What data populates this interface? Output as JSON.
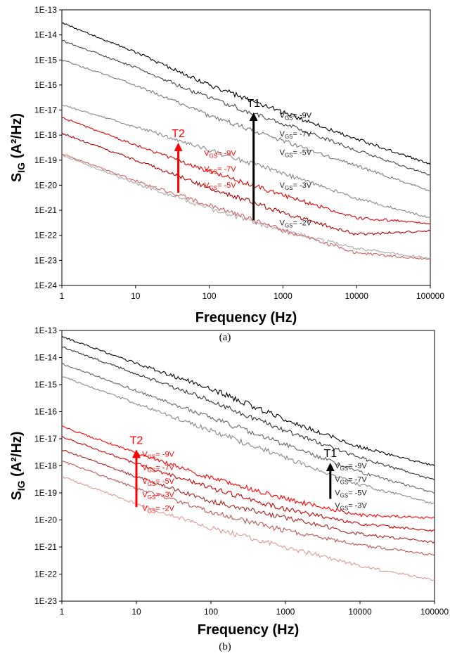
{
  "chart_data": [
    {
      "type": "line",
      "panel_label": "(a)",
      "xlabel": "Frequency (Hz)",
      "ylabel": "S",
      "ylabel_sub": "IG",
      "ylabel_tail": " (A²/Hz)",
      "xscale": "log",
      "yscale": "log",
      "xlim": [
        1,
        100000
      ],
      "ylim": [
        1e-24,
        1e-13
      ],
      "x_ticks": [
        "1",
        "10",
        "100",
        "1000",
        "10000",
        "100000"
      ],
      "y_ticks": [
        "1E-24",
        "1E-23",
        "1E-22",
        "1E-21",
        "1E-20",
        "1E-19",
        "1E-18",
        "1E-17",
        "1E-16",
        "1E-15",
        "1E-14",
        "1E-13"
      ],
      "grid": false,
      "x": [
        1,
        10,
        100,
        1000,
        10000,
        100000
      ],
      "series": [
        {
          "group": "T1",
          "color": "#000000",
          "values": [
            3e-14,
            2e-15,
            1e-16,
            8e-18,
            7e-19,
            7e-20
          ]
        },
        {
          "group": "T1",
          "color": "#444444",
          "values": [
            6e-15,
            5e-16,
            3e-17,
            3e-18,
            2.5e-19,
            2.5e-20
          ]
        },
        {
          "group": "T1",
          "color": "#777777",
          "values": [
            1e-15,
            1e-16,
            6e-18,
            6e-19,
            6e-20,
            6e-21
          ]
        },
        {
          "group": "T1",
          "color": "#888888",
          "values": [
            1.6e-17,
            2.2e-18,
            2.5e-19,
            3e-20,
            3e-21,
            5e-22
          ]
        },
        {
          "group": "T1",
          "color": "#aaaaaa",
          "values": [
            1.6e-19,
            1.2e-20,
            1.2e-21,
            1.5e-22,
            3e-23,
            1.2e-23
          ]
        },
        {
          "group": "T2",
          "color": "#dd0000",
          "values": [
            5e-18,
            4e-19,
            3.5e-20,
            4e-21,
            5e-22,
            3e-22
          ]
        },
        {
          "group": "T2",
          "color": "#aa0000",
          "values": [
            1.2e-18,
            1e-19,
            8e-21,
            8e-22,
            1.1e-22,
            1.5e-22
          ]
        },
        {
          "group": "T2",
          "color": "#cc6666",
          "values": [
            1.8e-19,
            1.5e-20,
            1.6e-21,
            1.6e-22,
            2e-23,
            1.1e-23
          ]
        }
      ],
      "arrows": [
        {
          "label": "T1",
          "color": "#000000",
          "x": 400,
          "y_from": 4e-22,
          "y_to": 8e-18
        },
        {
          "label": "T2",
          "color": "#ff0000",
          "x": 38,
          "y_from": 5e-21,
          "y_to": 5e-19
        }
      ],
      "annotations": [
        {
          "group": "T1",
          "color": "#000000",
          "x": 900,
          "y": 5e-18,
          "text_pre": "V",
          "text_sub": "GS",
          "text_post": "= -9V"
        },
        {
          "group": "T1",
          "color": "#222222",
          "x": 900,
          "y": 9e-19,
          "text_pre": "V",
          "text_sub": "GS",
          "text_post": "= -7V"
        },
        {
          "group": "T1",
          "color": "#222222",
          "x": 900,
          "y": 1.6e-19,
          "text_pre": "V",
          "text_sub": "GS",
          "text_post": "= -5V"
        },
        {
          "group": "T1",
          "color": "#222222",
          "x": 900,
          "y": 8e-21,
          "text_pre": "V",
          "text_sub": "GS",
          "text_post": "= -3V"
        },
        {
          "group": "T1",
          "color": "#222222",
          "x": 900,
          "y": 2.5e-22,
          "text_pre": "V",
          "text_sub": "GS",
          "text_post": "= -2V"
        },
        {
          "group": "T2",
          "color": "#ff0000",
          "x": 85,
          "y": 1.5e-19,
          "text_pre": "V",
          "text_sub": "GS",
          "text_post": "= -9V"
        },
        {
          "group": "T2",
          "color": "#ff0000",
          "x": 85,
          "y": 3.5e-20,
          "text_pre": "V",
          "text_sub": "GS",
          "text_post": "= -7V"
        },
        {
          "group": "T2",
          "color": "#ff0000",
          "x": 85,
          "y": 8e-21,
          "text_pre": "V",
          "text_sub": "GS",
          "text_post": "= -5V"
        }
      ]
    },
    {
      "type": "line",
      "panel_label": "(b)",
      "xlabel": "Frequency (Hz)",
      "ylabel": "S",
      "ylabel_sub": "IG",
      "ylabel_tail": " (A²/Hz)",
      "xscale": "log",
      "yscale": "log",
      "xlim": [
        1,
        100000
      ],
      "ylim": [
        1e-23,
        1e-13
      ],
      "x_ticks": [
        "1",
        "10",
        "100",
        "1000",
        "10000",
        "100000"
      ],
      "y_ticks": [
        "1E-23",
        "1E-22",
        "1E-21",
        "1E-20",
        "1E-19",
        "1E-18",
        "1E-17",
        "1E-16",
        "1E-15",
        "1E-14",
        "1E-13"
      ],
      "grid": false,
      "x": [
        1,
        10,
        100,
        1000,
        10000,
        100000
      ],
      "series": [
        {
          "group": "T1",
          "color": "#000000",
          "values": [
            6e-14,
            6e-15,
            7e-16,
            5e-17,
            5e-18,
            1e-18
          ]
        },
        {
          "group": "T1",
          "color": "#333333",
          "values": [
            2.5e-14,
            2.5e-15,
            2.5e-16,
            2e-17,
            2e-18,
            3e-19
          ]
        },
        {
          "group": "T1",
          "color": "#666666",
          "values": [
            6e-15,
            6e-16,
            6e-17,
            6e-18,
            6e-19,
            1e-19
          ]
        },
        {
          "group": "T1",
          "color": "#888888",
          "values": [
            2e-15,
            2e-16,
            2e-17,
            2e-18,
            2e-19,
            4e-20
          ]
        },
        {
          "group": "T2",
          "color": "#ff0000",
          "values": [
            2.8e-17,
            3e-18,
            3.5e-19,
            6e-20,
            1.5e-20,
            1.2e-20
          ]
        },
        {
          "group": "T2",
          "color": "#cc0000",
          "values": [
            1.2e-17,
            1.2e-18,
            1.5e-19,
            2.5e-20,
            7e-21,
            4e-21
          ]
        },
        {
          "group": "T2",
          "color": "#aa2222",
          "values": [
            4e-18,
            4e-19,
            5e-20,
            1.2e-20,
            3e-21,
            1.5e-21
          ]
        },
        {
          "group": "T2",
          "color": "#bb5555",
          "values": [
            1.5e-18,
            1.5e-19,
            2e-20,
            4e-21,
            1.2e-21,
            5e-22
          ]
        },
        {
          "group": "T2",
          "color": "#dd9999",
          "values": [
            4e-19,
            4e-20,
            5e-21,
            1e-21,
            2e-22,
            6e-23
          ]
        }
      ],
      "arrows": [
        {
          "label": "T1",
          "color": "#000000",
          "x": 4000,
          "y_from": 6e-20,
          "y_to": 1.3e-18
        },
        {
          "label": "T2",
          "color": "#ff0000",
          "x": 10,
          "y_from": 3e-20,
          "y_to": 4e-18
        }
      ],
      "annotations": [
        {
          "group": "T1",
          "color": "#222222",
          "x": 4600,
          "y": 8e-19,
          "text_pre": "V",
          "text_sub": "GS",
          "text_post": "= -9V"
        },
        {
          "group": "T1",
          "color": "#222222",
          "x": 4600,
          "y": 2.5e-19,
          "text_pre": "V",
          "text_sub": "GS",
          "text_post": "= -7V"
        },
        {
          "group": "T1",
          "color": "#222222",
          "x": 4600,
          "y": 8e-20,
          "text_pre": "V",
          "text_sub": "GS",
          "text_post": "= -5V"
        },
        {
          "group": "T1",
          "color": "#222222",
          "x": 4600,
          "y": 2.8e-20,
          "text_pre": "V",
          "text_sub": "GS",
          "text_post": "= -3V"
        },
        {
          "group": "T2",
          "color": "#ff0000",
          "x": 12,
          "y": 2.2e-18,
          "text_pre": "V",
          "text_sub": "GS",
          "text_post": "= -9V"
        },
        {
          "group": "T2",
          "color": "#ff0000",
          "x": 12,
          "y": 7e-19,
          "text_pre": "V",
          "text_sub": "GS",
          "text_post": "= -7V"
        },
        {
          "group": "T2",
          "color": "#ff0000",
          "x": 12,
          "y": 2.2e-19,
          "text_pre": "V",
          "text_sub": "GS",
          "text_post": "= -5V"
        },
        {
          "group": "T2",
          "color": "#ff0000",
          "x": 12,
          "y": 7e-20,
          "text_pre": "V",
          "text_sub": "GS",
          "text_post": "= -3V"
        },
        {
          "group": "T2",
          "color": "#ff0000",
          "x": 12,
          "y": 2.2e-20,
          "text_pre": "V",
          "text_sub": "GS",
          "text_post": "= -2V"
        }
      ]
    }
  ]
}
